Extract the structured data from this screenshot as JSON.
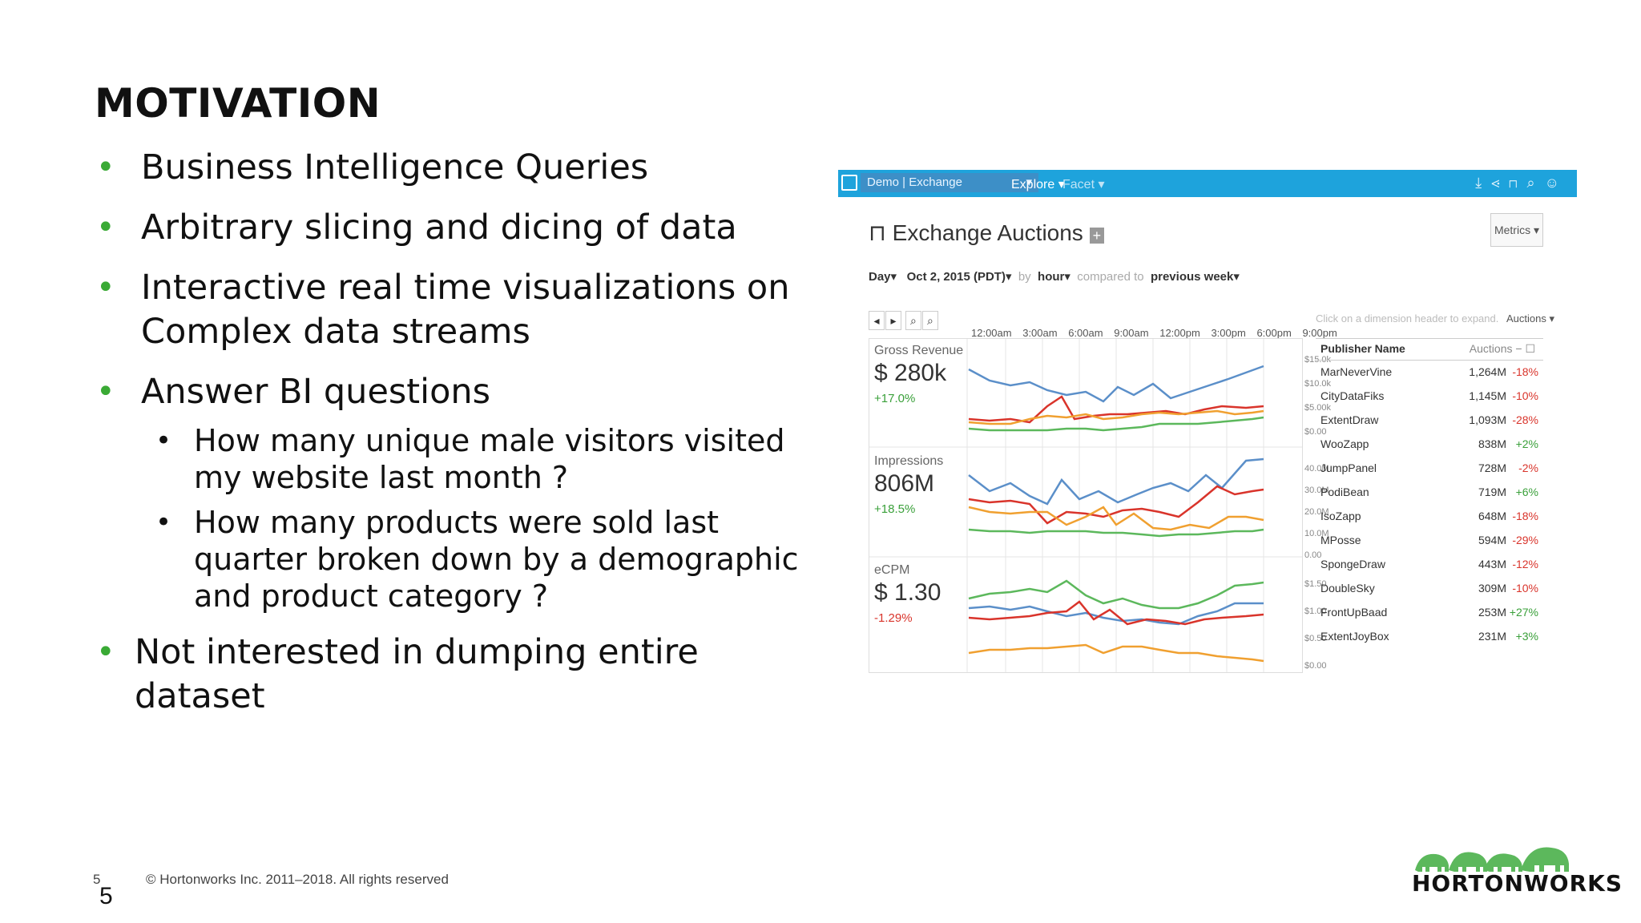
{
  "slide": {
    "title": "MOTIVATION",
    "bullets": [
      {
        "text": "Business Intelligence Queries"
      },
      {
        "text": "Arbitrary slicing and dicing of data"
      },
      {
        "text": "Interactive real time visualizations on Complex data streams"
      },
      {
        "text": "Answer BI questions",
        "sub": [
          "How many unique male visitors visited my website last month ?",
          "How many products were sold last quarter broken down by a demographic and product category ?"
        ]
      },
      {
        "text": "Not interested in dumping entire dataset"
      }
    ],
    "footer": "© Hortonworks Inc. 2011–2018. All rights reserved",
    "page_small": "5",
    "page_big": "5",
    "logo_text": "HORTONWORKS"
  },
  "dashboard": {
    "datasource": "Demo | Exchange",
    "menu_explore": "Explore",
    "menu_facet": "Facet",
    "title": "Exchange Auctions",
    "metrics_button": "Metrics",
    "filter_granularity": "Day",
    "filter_date": "Oct 2, 2015 (PDT)",
    "filter_by": "by",
    "filter_hour": "hour",
    "filter_compared": "compared to",
    "filter_period": "previous week",
    "hint": "Click on a dimension header to expand.",
    "auctions_dropdown": "Auctions",
    "time_labels": [
      "12:00am",
      "3:00am",
      "6:00am",
      "9:00am",
      "12:00pm",
      "3:00pm",
      "6:00pm",
      "9:00pm"
    ],
    "panels": [
      {
        "label": "Gross Revenue",
        "value": "$ 280k",
        "change": "+17.0%",
        "change_color": "#3aa03a",
        "axis": [
          "$15.0k",
          "$10.0k",
          "$5.00k",
          "$0.00"
        ]
      },
      {
        "label": "Impressions",
        "value": "806M",
        "change": "+18.5%",
        "change_color": "#3aa03a",
        "axis": [
          "40.0M",
          "30.0M",
          "20.0M",
          "10.0M",
          "0.00"
        ]
      },
      {
        "label": "eCPM",
        "value": "$ 1.30",
        "change": "-1.29%",
        "change_color": "#d9342b",
        "axis": [
          "$1.50",
          "$1.00",
          "$0.50",
          "$0.00"
        ]
      }
    ],
    "table": {
      "col_name": "Publisher Name",
      "col_auctions": "Auctions",
      "rows": [
        {
          "name": "MarNeverVine",
          "auctions": "1,264M",
          "pct": "-18%"
        },
        {
          "name": "CityDataFiks",
          "auctions": "1,145M",
          "pct": "-10%"
        },
        {
          "name": "ExtentDraw",
          "auctions": "1,093M",
          "pct": "-28%"
        },
        {
          "name": "WooZapp",
          "auctions": "838M",
          "pct": "+2%"
        },
        {
          "name": "JumpPanel",
          "auctions": "728M",
          "pct": "-2%"
        },
        {
          "name": "PodiBean",
          "auctions": "719M",
          "pct": "+6%"
        },
        {
          "name": "IsoZapp",
          "auctions": "648M",
          "pct": "-18%"
        },
        {
          "name": "MPosse",
          "auctions": "594M",
          "pct": "-29%"
        },
        {
          "name": "SpongeDraw",
          "auctions": "443M",
          "pct": "-12%"
        },
        {
          "name": "DoubleSky",
          "auctions": "309M",
          "pct": "-10%"
        },
        {
          "name": "FrontUpBaad",
          "auctions": "253M",
          "pct": "+27%"
        },
        {
          "name": "ExtentJoyBox",
          "auctions": "231M",
          "pct": "+3%"
        }
      ]
    },
    "colors": {
      "blue": "#5b8fc9",
      "red": "#d9342b",
      "orange": "#f0a030",
      "green": "#5cb85c"
    }
  }
}
